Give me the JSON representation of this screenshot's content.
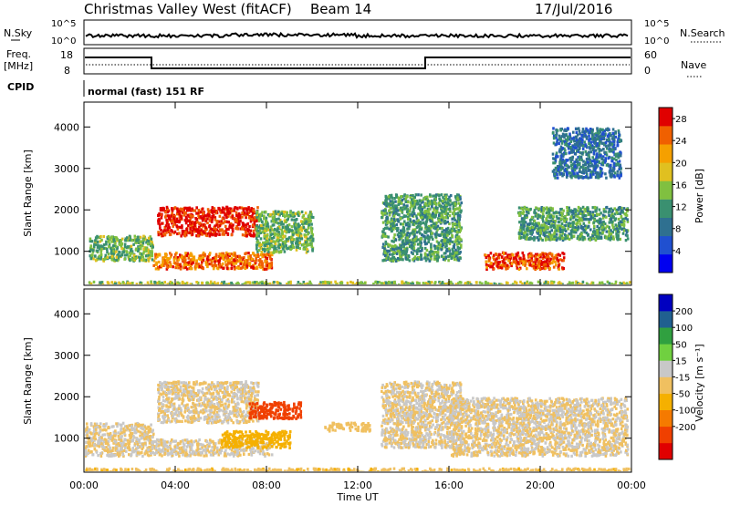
{
  "header": {
    "title": "Christmas Valley West (fitACF)",
    "beam": "Beam 14",
    "date": "17/Jul/2016"
  },
  "top_panels": {
    "nsky_label": "N.Sky",
    "nsearch_label": "N.Search",
    "nsky_ticks": [
      "10^5",
      "10^0"
    ],
    "freq_label_1": "Freq.",
    "freq_label_2": "[MHz]",
    "freq_ticks": [
      "18",
      "8"
    ],
    "nave_label": "Nave",
    "nave_ticks": [
      "60",
      "0"
    ],
    "cpid_label": "CPID",
    "cpid_text": "normal (fast) 151 RF"
  },
  "chart_data": [
    {
      "type": "heatmap",
      "title": "",
      "xlabel": "Time UT",
      "ylabel": "Slant Range [km]",
      "x_ticks": [
        "00:00",
        "04:00",
        "08:00",
        "12:00",
        "16:00",
        "20:00",
        "00:00"
      ],
      "x_range_hours": [
        0,
        24
      ],
      "y_ticks": [
        "1000",
        "2000",
        "3000",
        "4000"
      ],
      "y_range_km": [
        180,
        4600
      ],
      "colorbar": {
        "label": "Power [dB]",
        "ticks": [
          "4",
          "8",
          "12",
          "16",
          "20",
          "24",
          "28"
        ],
        "range": [
          0,
          30
        ],
        "colors": [
          "#0000f0",
          "#2050d0",
          "#2f7090",
          "#3a9070",
          "#80c040",
          "#e0c020",
          "#f5a000",
          "#f06000",
          "#e00000"
        ]
      },
      "regions": [
        {
          "t": [
            3.2,
            7.6
          ],
          "r": [
            1400,
            2100
          ],
          "value": 28
        },
        {
          "t": [
            3.0,
            8.2
          ],
          "r": [
            600,
            1000
          ],
          "value": 24
        },
        {
          "t": [
            17.5,
            21.0
          ],
          "r": [
            600,
            1000
          ],
          "value": 26
        },
        {
          "t": [
            0.2,
            3.0
          ],
          "r": [
            800,
            1400
          ],
          "value": 14
        },
        {
          "t": [
            7.5,
            10.0
          ],
          "r": [
            1000,
            2000
          ],
          "value": 14
        },
        {
          "t": [
            13.0,
            16.5
          ],
          "r": [
            800,
            2400
          ],
          "value": 12
        },
        {
          "t": [
            19.0,
            23.8
          ],
          "r": [
            1300,
            2100
          ],
          "value": 12
        },
        {
          "t": [
            0.0,
            24.0
          ],
          "r": [
            200,
            300
          ],
          "value": 16
        },
        {
          "t": [
            20.5,
            23.5
          ],
          "r": [
            2800,
            4000
          ],
          "value": 8
        }
      ]
    },
    {
      "type": "heatmap",
      "title": "",
      "xlabel": "Time UT",
      "ylabel": "Slant Range [km]",
      "x_ticks": [
        "00:00",
        "04:00",
        "08:00",
        "12:00",
        "16:00",
        "20:00",
        "00:00"
      ],
      "x_range_hours": [
        0,
        24
      ],
      "y_ticks": [
        "1000",
        "2000",
        "3000",
        "4000"
      ],
      "y_range_km": [
        180,
        4600
      ],
      "colorbar": {
        "label": "Velocity [m s⁻¹]",
        "ticks": [
          "200",
          "100",
          "50",
          "15",
          "-15",
          "-50",
          "-100",
          "-200"
        ],
        "range": [
          -250,
          250
        ],
        "colors": [
          "#e00000",
          "#f04000",
          "#f57a00",
          "#f5b000",
          "#f0c060",
          "#c8c8c8",
          "#70d040",
          "#30a040",
          "#206090",
          "#0000c0"
        ]
      },
      "regions": [
        {
          "t": [
            3.2,
            7.6
          ],
          "r": [
            1400,
            2400
          ],
          "value": 0
        },
        {
          "t": [
            3.0,
            8.2
          ],
          "r": [
            600,
            1000
          ],
          "value": 0
        },
        {
          "t": [
            6.0,
            9.0
          ],
          "r": [
            800,
            1200
          ],
          "value": -70
        },
        {
          "t": [
            7.2,
            9.5
          ],
          "r": [
            1500,
            1900
          ],
          "value": -180
        },
        {
          "t": [
            13.0,
            16.5
          ],
          "r": [
            800,
            2400
          ],
          "value": 0
        },
        {
          "t": [
            16.0,
            23.8
          ],
          "r": [
            600,
            2000
          ],
          "value": 0
        },
        {
          "t": [
            0.0,
            3.0
          ],
          "r": [
            600,
            1400
          ],
          "value": 0
        },
        {
          "t": [
            10.5,
            12.5
          ],
          "r": [
            1200,
            1400
          ],
          "value": -30
        },
        {
          "t": [
            0.0,
            24.0
          ],
          "r": [
            200,
            300
          ],
          "value": -40
        }
      ]
    }
  ]
}
